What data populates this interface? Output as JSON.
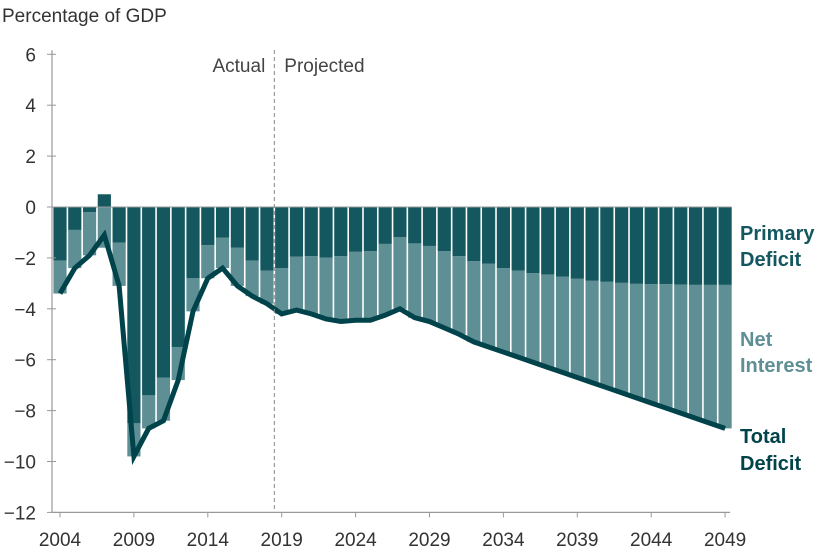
{
  "chart_data": {
    "type": "bar",
    "title": "Percentage of GDP",
    "xlabel": "",
    "ylabel": "Percentage of GDP",
    "ylim": [
      -12,
      6
    ],
    "yticks": [
      6,
      4,
      2,
      0,
      -2,
      -4,
      -6,
      -8,
      -10,
      -12
    ],
    "ytick_labels": [
      "6",
      "4",
      "2",
      "0",
      "−2",
      "−4",
      "−6",
      "−8",
      "−10",
      "−12"
    ],
    "xticks": [
      2004,
      2009,
      2014,
      2019,
      2024,
      2029,
      2034,
      2039,
      2044,
      2049
    ],
    "x": [
      2004,
      2005,
      2006,
      2007,
      2008,
      2009,
      2010,
      2011,
      2012,
      2013,
      2014,
      2015,
      2016,
      2017,
      2018,
      2019,
      2020,
      2021,
      2022,
      2023,
      2024,
      2025,
      2026,
      2027,
      2028,
      2029,
      2030,
      2031,
      2032,
      2033,
      2034,
      2035,
      2036,
      2037,
      2038,
      2039,
      2040,
      2041,
      2042,
      2043,
      2044,
      2045,
      2046,
      2047,
      2048,
      2049
    ],
    "series": [
      {
        "name": "Primary Deficit",
        "type": "stacked-bar",
        "color": "#14575f",
        "values": [
          -2.1,
          -0.9,
          -0.2,
          0.5,
          -1.4,
          -8.5,
          -7.4,
          -6.7,
          -5.5,
          -2.8,
          -1.5,
          -1.2,
          -1.6,
          -2.1,
          -2.5,
          -2.4,
          -1.95,
          -1.93,
          -1.99,
          -1.93,
          -1.76,
          -1.73,
          -1.45,
          -1.18,
          -1.43,
          -1.53,
          -1.73,
          -1.93,
          -2.13,
          -2.22,
          -2.4,
          -2.5,
          -2.6,
          -2.65,
          -2.74,
          -2.82,
          -2.9,
          -2.94,
          -2.98,
          -3.02,
          -3.03,
          -3.03,
          -3.05,
          -3.06,
          -3.06,
          -3.06
        ]
      },
      {
        "name": "Net Interest",
        "type": "stacked-bar",
        "color": "#5e8f95",
        "values": [
          -1.3,
          -1.5,
          -1.7,
          -1.6,
          -1.7,
          -1.3,
          -1.3,
          -1.7,
          -1.3,
          -1.3,
          -1.3,
          -1.2,
          -1.5,
          -1.4,
          -1.3,
          -1.8,
          -2.1,
          -2.27,
          -2.41,
          -2.57,
          -2.69,
          -2.72,
          -2.8,
          -2.82,
          -2.92,
          -2.97,
          -3.02,
          -3.07,
          -3.17,
          -3.28,
          -3.3,
          -3.4,
          -3.5,
          -3.65,
          -3.76,
          -3.88,
          -4.0,
          -4.16,
          -4.32,
          -4.48,
          -4.67,
          -4.87,
          -5.05,
          -5.24,
          -5.44,
          -5.64
        ]
      },
      {
        "name": "Total Deficit",
        "type": "line",
        "color": "#00434a",
        "values": [
          -3.4,
          -2.4,
          -1.9,
          -1.1,
          -3.1,
          -9.8,
          -8.7,
          -8.4,
          -6.8,
          -4.1,
          -2.8,
          -2.4,
          -3.1,
          -3.5,
          -3.8,
          -4.2,
          -4.05,
          -4.2,
          -4.4,
          -4.5,
          -4.45,
          -4.45,
          -4.25,
          -4.0,
          -4.35,
          -4.5,
          -4.75,
          -5.0,
          -5.3,
          -5.5,
          -5.7,
          -5.9,
          -6.1,
          -6.3,
          -6.5,
          -6.7,
          -6.9,
          -7.1,
          -7.3,
          -7.5,
          -7.7,
          -7.9,
          -8.1,
          -8.3,
          -8.5,
          -8.7
        ]
      }
    ],
    "labels": {
      "primary": [
        "Primary",
        "Deficit"
      ],
      "interest": [
        "Net",
        "Interest"
      ],
      "total": [
        "Total",
        "Deficit"
      ]
    },
    "annotations": {
      "actual": "Actual",
      "projected": "Projected",
      "divider_year": 2018.5
    },
    "grid": false,
    "legend": "right (direct labels)"
  }
}
